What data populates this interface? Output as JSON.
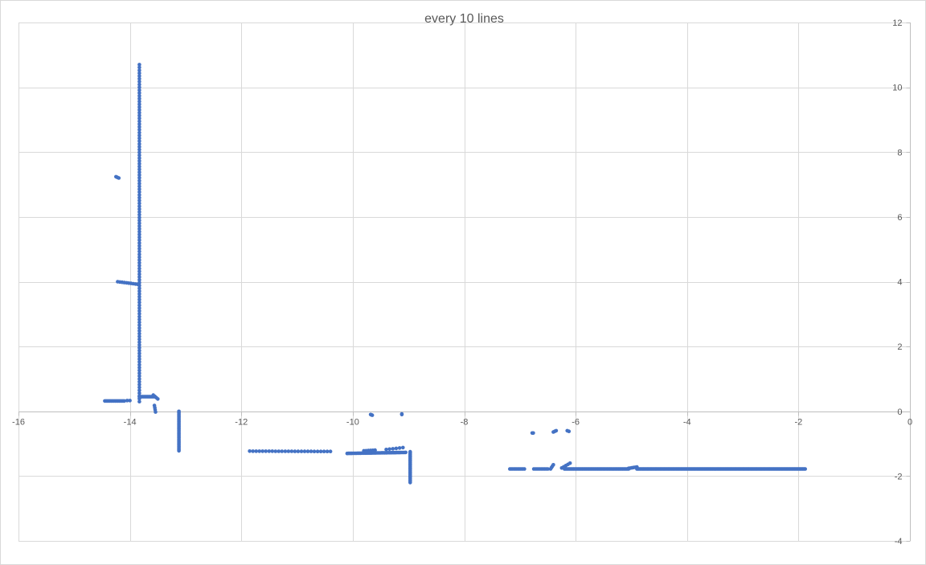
{
  "chart_data": {
    "type": "scatter",
    "title": "every 10 lines",
    "xlabel": "",
    "ylabel": "",
    "xlim": [
      -16,
      0
    ],
    "ylim": [
      -4,
      12
    ],
    "x_ticks": [
      -16,
      -14,
      -12,
      -10,
      -8,
      -6,
      -4,
      -2,
      0
    ],
    "y_ticks": [
      -4,
      -2,
      0,
      2,
      4,
      6,
      8,
      10,
      12
    ],
    "x_tick_labels": [
      "-16",
      "-14",
      "-12",
      "-10",
      "-8",
      "-6",
      "-4",
      "-2",
      "0"
    ],
    "y_tick_labels": [
      "-4",
      "-2",
      "0",
      "2",
      "4",
      "6",
      "8",
      "10",
      "12"
    ],
    "grid": true,
    "y_axis_position": "right",
    "series_color": "#4472c4",
    "segments": [
      {
        "from": [
          -13.83,
          0.3
        ],
        "to": [
          -13.83,
          10.7
        ],
        "n": 120
      },
      {
        "from": [
          -14.45,
          0.32
        ],
        "to": [
          -14.1,
          0.32
        ],
        "n": 16
      },
      {
        "from": [
          -14.05,
          0.33
        ],
        "to": [
          -14.0,
          0.33
        ],
        "n": 2
      },
      {
        "from": [
          -13.83,
          0.45
        ],
        "to": [
          -13.55,
          0.45
        ],
        "n": 14
      },
      {
        "from": [
          -13.58,
          0.5
        ],
        "to": [
          -13.5,
          0.38
        ],
        "n": 4
      },
      {
        "from": [
          -13.56,
          0.18
        ],
        "to": [
          -13.54,
          -0.02
        ],
        "n": 4
      },
      {
        "from": [
          -14.22,
          4.0
        ],
        "to": [
          -13.86,
          3.92
        ],
        "n": 10
      },
      {
        "from": [
          -14.25,
          7.24
        ],
        "to": [
          -14.2,
          7.2
        ],
        "n": 3
      },
      {
        "from": [
          -13.12,
          0.0
        ],
        "to": [
          -13.12,
          -1.22
        ],
        "n": 28
      },
      {
        "from": [
          -11.85,
          -1.23
        ],
        "to": [
          -10.4,
          -1.24
        ],
        "n": 26
      },
      {
        "from": [
          -10.1,
          -1.3
        ],
        "to": [
          -9.05,
          -1.27
        ],
        "n": 40
      },
      {
        "from": [
          -9.8,
          -1.22
        ],
        "to": [
          -9.6,
          -1.2
        ],
        "n": 6
      },
      {
        "from": [
          -9.4,
          -1.18
        ],
        "to": [
          -9.1,
          -1.12
        ],
        "n": 6
      },
      {
        "from": [
          -9.68,
          -0.1
        ],
        "to": [
          -9.65,
          -0.12
        ],
        "n": 3
      },
      {
        "from": [
          -9.12,
          -0.08
        ],
        "to": [
          -9.12,
          -0.1
        ],
        "n": 2
      },
      {
        "from": [
          -8.97,
          -1.25
        ],
        "to": [
          -8.97,
          -2.2
        ],
        "n": 24
      },
      {
        "from": [
          -7.18,
          -1.78
        ],
        "to": [
          -6.92,
          -1.78
        ],
        "n": 12
      },
      {
        "from": [
          -6.75,
          -1.78
        ],
        "to": [
          -6.5,
          -1.78
        ],
        "n": 10
      },
      {
        "from": [
          -6.45,
          -1.78
        ],
        "to": [
          -6.4,
          -1.65
        ],
        "n": 4
      },
      {
        "from": [
          -6.25,
          -1.75
        ],
        "to": [
          -6.1,
          -1.6
        ],
        "n": 5
      },
      {
        "from": [
          -6.2,
          -1.78
        ],
        "to": [
          -5.05,
          -1.78
        ],
        "n": 60
      },
      {
        "from": [
          -5.05,
          -1.76
        ],
        "to": [
          -4.9,
          -1.72
        ],
        "n": 6
      },
      {
        "from": [
          -4.9,
          -1.78
        ],
        "to": [
          -1.88,
          -1.78
        ],
        "n": 170
      },
      {
        "from": [
          -6.78,
          -0.67
        ],
        "to": [
          -6.76,
          -0.67
        ],
        "n": 2
      },
      {
        "from": [
          -6.4,
          -0.64
        ],
        "to": [
          -6.35,
          -0.6
        ],
        "n": 3
      },
      {
        "from": [
          -6.15,
          -0.6
        ],
        "to": [
          -6.12,
          -0.62
        ],
        "n": 2
      }
    ]
  }
}
